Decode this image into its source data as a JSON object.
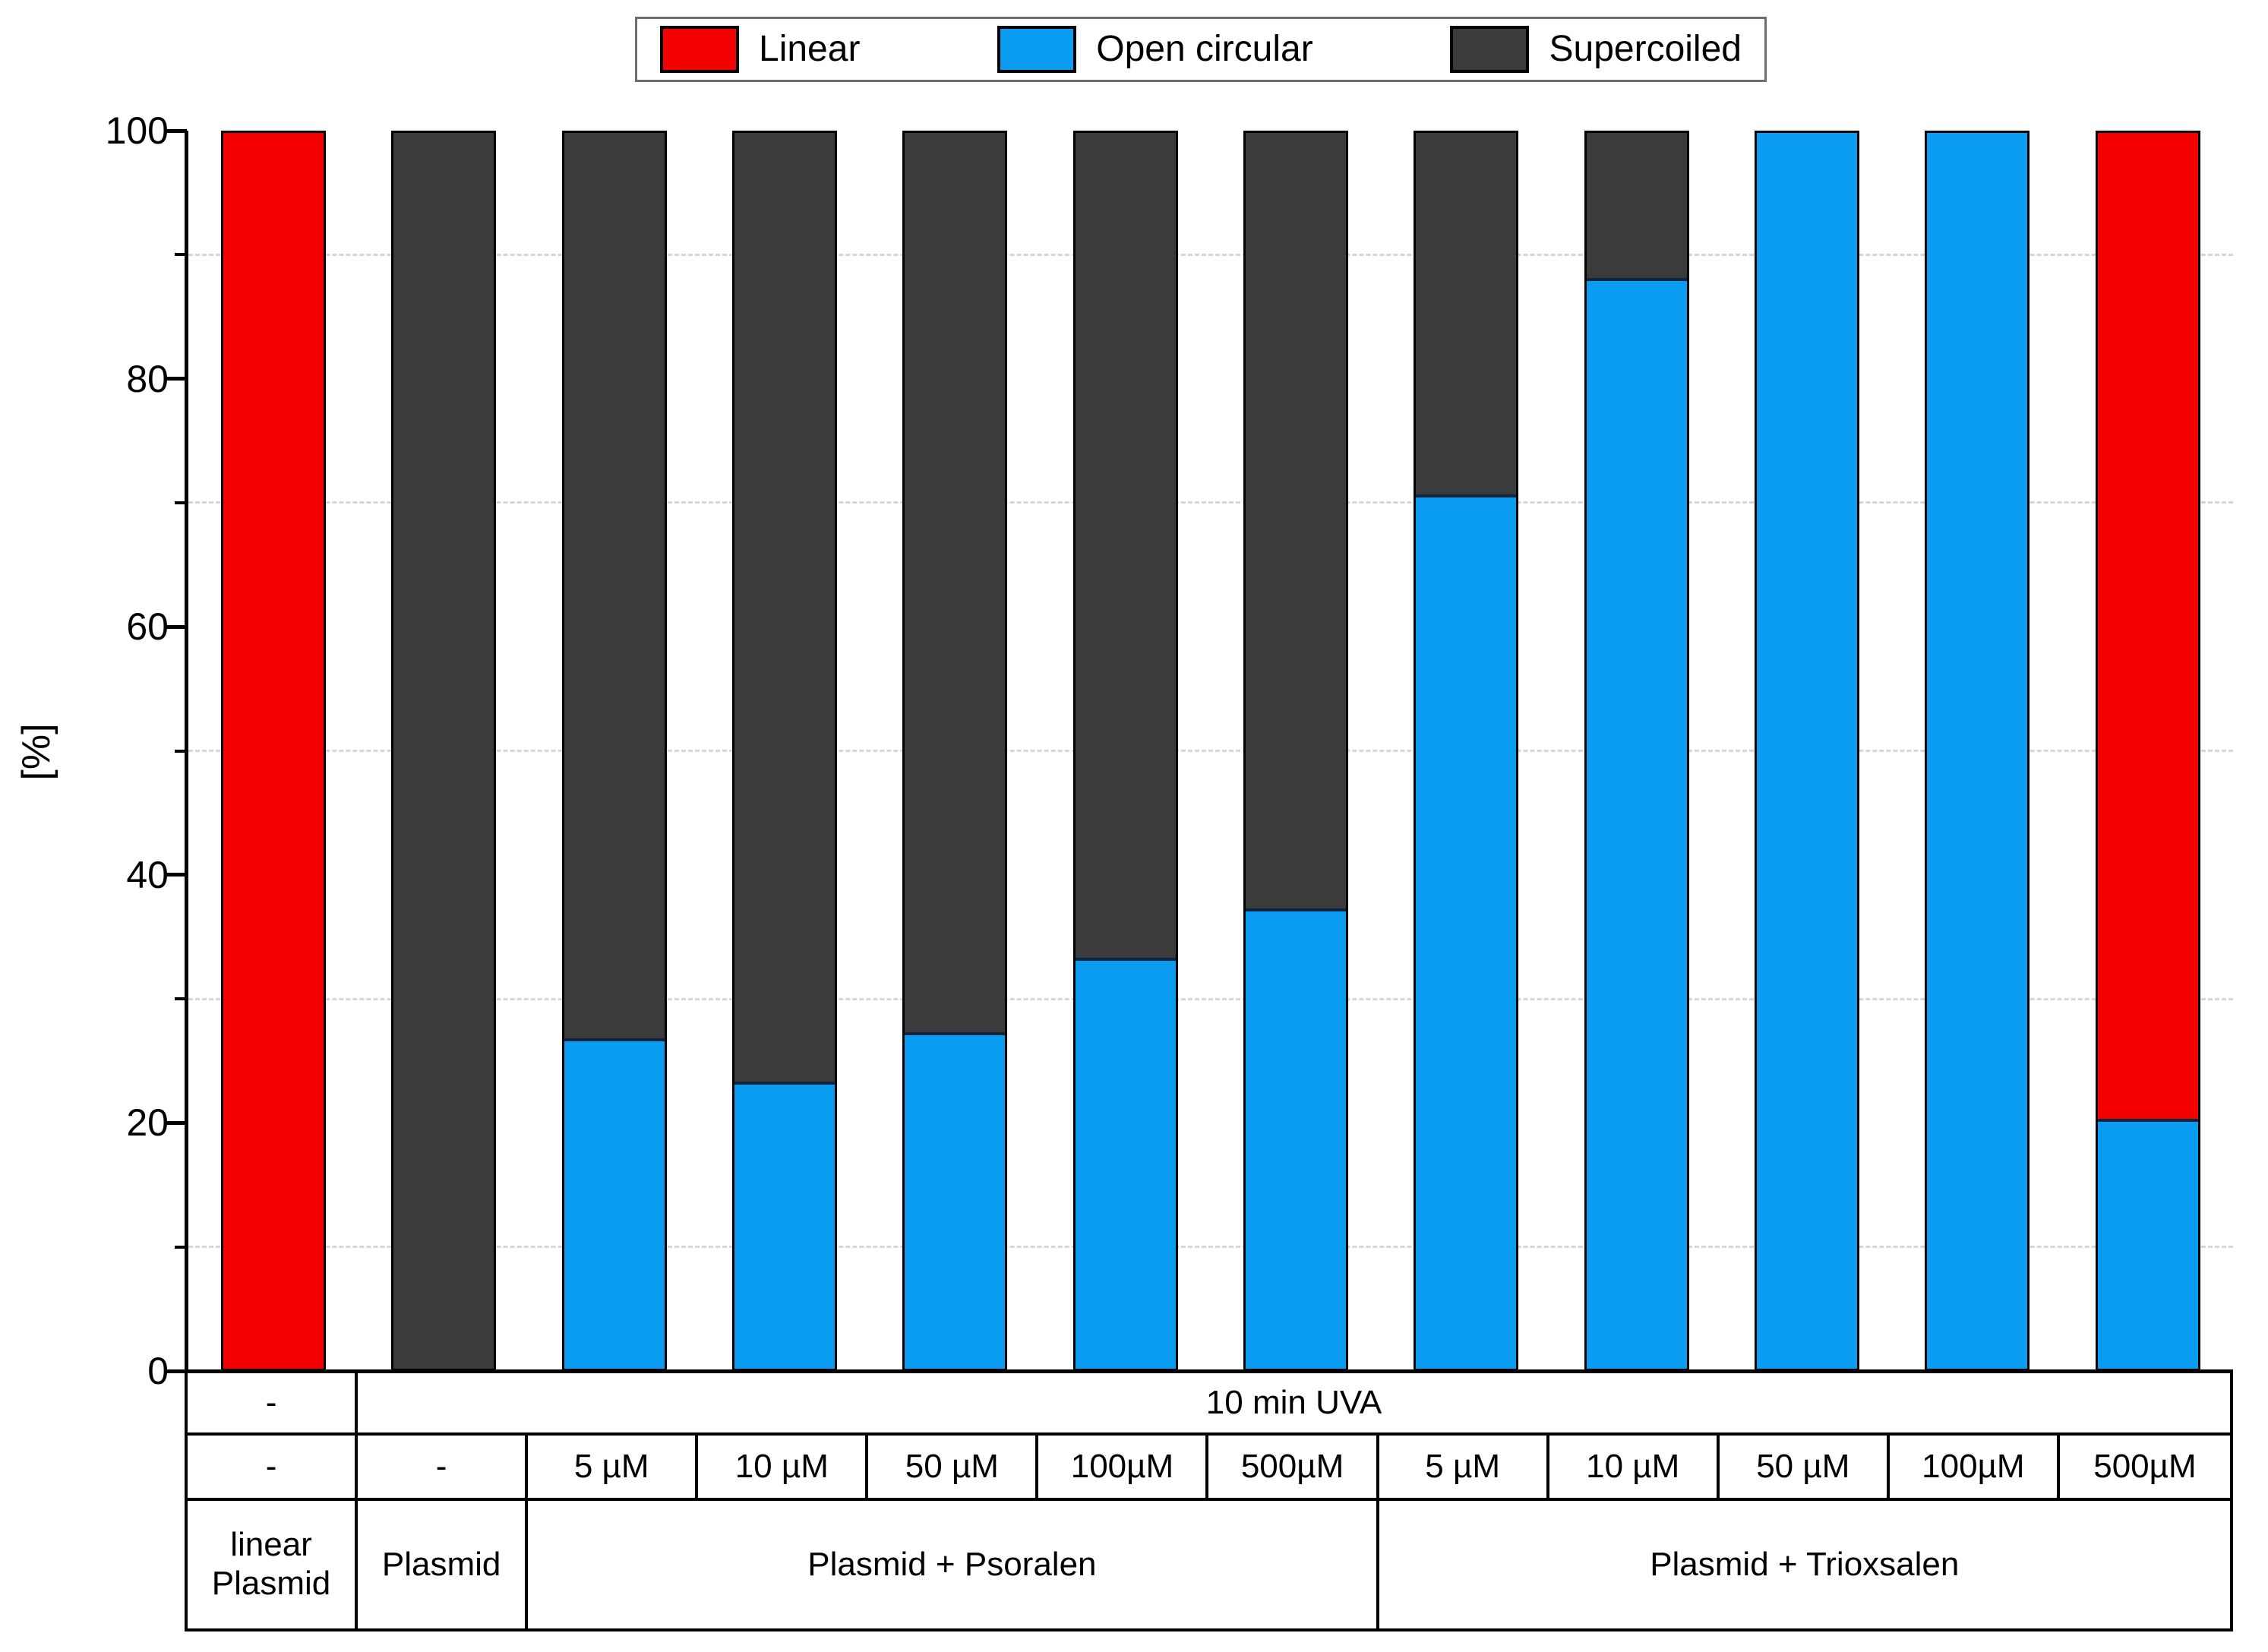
{
  "chart_data": {
    "type": "bar",
    "stacked": true,
    "title": "",
    "ylabel": "[%]",
    "ylim": [
      0,
      100
    ],
    "grid": "dashed horizontal at minor ticks",
    "legend_position": "top-center",
    "legend": [
      {
        "label": "Linear",
        "color": "#F40000"
      },
      {
        "label": "Open circular",
        "color": "#0A9CF0"
      },
      {
        "label": "Supercoiled",
        "color": "#3B3B3B"
      }
    ],
    "y_major_ticks": [
      {
        "value": 0,
        "label": "0"
      },
      {
        "value": 20,
        "label": "20"
      },
      {
        "value": 40,
        "label": "40"
      },
      {
        "value": 60,
        "label": "60"
      },
      {
        "value": 80,
        "label": "80"
      },
      {
        "value": 100,
        "label": "100"
      }
    ],
    "y_minor_ticks": [
      10,
      30,
      50,
      70,
      90
    ],
    "gridline_values": [
      10,
      30,
      50,
      70,
      90
    ],
    "categories": [
      "linear Plasmid",
      "Plasmid",
      "Psoralen 5 µM",
      "Psoralen 10 µM",
      "Psoralen 50 µM",
      "Psoralen 100µM",
      "Psoralen 500µM",
      "Trioxsalen 5 µM",
      "Trioxsalen 10 µM",
      "Trioxsalen 50 µM",
      "Trioxsalen 100µM",
      "Trioxsalen 500µM"
    ],
    "stack_order_bottom_to_top": [
      "Open circular",
      "Supercoiled",
      "Linear"
    ],
    "series": [
      {
        "name": "Open circular",
        "color": "#0A9CF0",
        "values": [
          0,
          0,
          26.5,
          23,
          27,
          33,
          37,
          70.5,
          88,
          100,
          100,
          20
        ]
      },
      {
        "name": "Supercoiled",
        "color": "#3B3B3B",
        "values": [
          0,
          100,
          73.5,
          77,
          73,
          67,
          63,
          29.5,
          12,
          0,
          0,
          0
        ]
      },
      {
        "name": "Linear",
        "color": "#F40000",
        "values": [
          100,
          0,
          0,
          0,
          0,
          0,
          0,
          0,
          0,
          0,
          0,
          80
        ]
      }
    ],
    "segment_divider_color": "#0d2440",
    "gridline_color": "#d6d6d6"
  },
  "x_table": {
    "rows": [
      {
        "name": "uva-row",
        "cells": [
          {
            "text": "-",
            "span": 1
          },
          {
            "text": "10 min UVA",
            "span": 11
          }
        ]
      },
      {
        "name": "concentration-row",
        "cells": [
          {
            "text": "-",
            "span": 1
          },
          {
            "text": "-",
            "span": 1
          },
          {
            "text": "5 µM",
            "span": 1
          },
          {
            "text": "10 µM",
            "span": 1
          },
          {
            "text": "50 µM",
            "span": 1
          },
          {
            "text": "100µM",
            "span": 1
          },
          {
            "text": "500µM",
            "span": 1
          },
          {
            "text": "5 µM",
            "span": 1
          },
          {
            "text": "10 µM",
            "span": 1
          },
          {
            "text": "50 µM",
            "span": 1
          },
          {
            "text": "100µM",
            "span": 1
          },
          {
            "text": "500µM",
            "span": 1
          }
        ]
      },
      {
        "name": "sample-row",
        "cells": [
          {
            "text": "linear\nPlasmid",
            "span": 1
          },
          {
            "text": "Plasmid",
            "span": 1
          },
          {
            "text": "Plasmid + Psoralen",
            "span": 5
          },
          {
            "text": "Plasmid + Trioxsalen",
            "span": 5
          }
        ]
      }
    ]
  }
}
